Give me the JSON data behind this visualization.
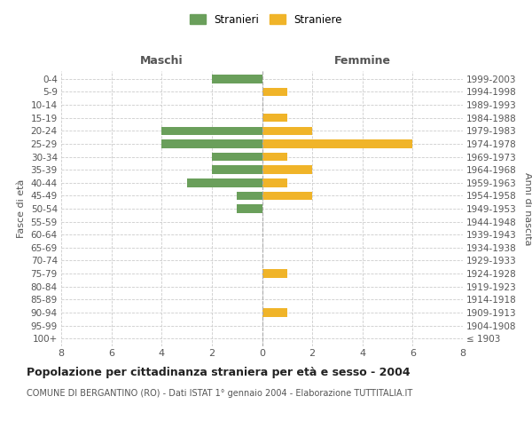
{
  "age_groups": [
    "100+",
    "95-99",
    "90-94",
    "85-89",
    "80-84",
    "75-79",
    "70-74",
    "65-69",
    "60-64",
    "55-59",
    "50-54",
    "45-49",
    "40-44",
    "35-39",
    "30-34",
    "25-29",
    "20-24",
    "15-19",
    "10-14",
    "5-9",
    "0-4"
  ],
  "birth_years": [
    "≤ 1903",
    "1904-1908",
    "1909-1913",
    "1914-1918",
    "1919-1923",
    "1924-1928",
    "1929-1933",
    "1934-1938",
    "1939-1943",
    "1944-1948",
    "1949-1953",
    "1954-1958",
    "1959-1963",
    "1964-1968",
    "1969-1973",
    "1974-1978",
    "1979-1983",
    "1984-1988",
    "1989-1993",
    "1994-1998",
    "1999-2003"
  ],
  "maschi": [
    0,
    0,
    0,
    0,
    0,
    0,
    0,
    0,
    0,
    0,
    1,
    1,
    3,
    2,
    2,
    4,
    4,
    0,
    0,
    0,
    2
  ],
  "femmine": [
    0,
    0,
    1,
    0,
    0,
    1,
    0,
    0,
    0,
    0,
    0,
    2,
    1,
    2,
    1,
    6,
    2,
    1,
    0,
    1,
    0
  ],
  "color_maschi": "#6a9f5b",
  "color_femmine": "#f0b429",
  "title": "Popolazione per cittadinanza straniera per età e sesso - 2004",
  "subtitle": "COMUNE DI BERGANTINO (RO) - Dati ISTAT 1° gennaio 2004 - Elaborazione TUTTITALIA.IT",
  "ylabel_left": "Fasce di età",
  "ylabel_right": "Anni di nascita",
  "header_left": "Maschi",
  "header_right": "Femmine",
  "legend_maschi": "Stranieri",
  "legend_femmine": "Straniere",
  "xlim": 8,
  "background_color": "#ffffff",
  "grid_color": "#cccccc"
}
